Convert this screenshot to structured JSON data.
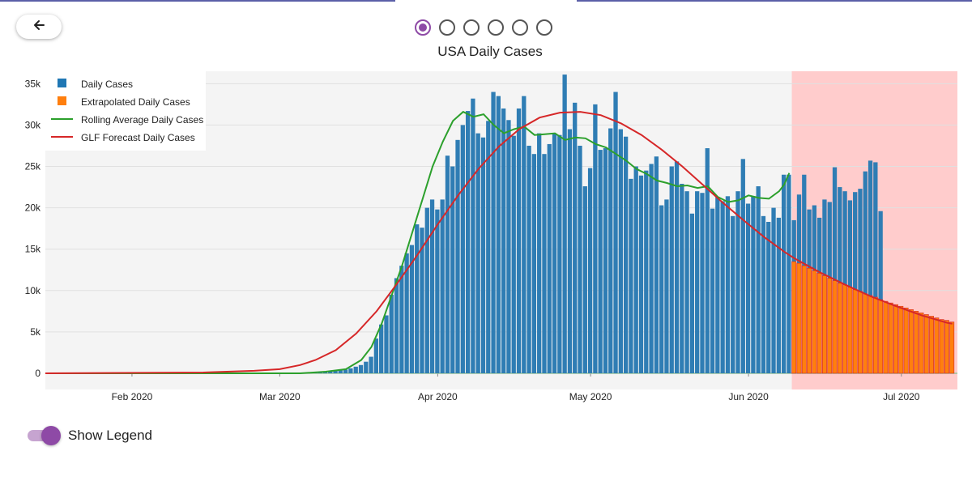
{
  "colors": {
    "accent": "#8e4aa6",
    "bars_actual": "#2f7db4",
    "bars_extrapolated": "#ff7f0e",
    "rolling": "#2ca02c",
    "forecast": "#d62728",
    "forecast_region": "#ffcccc",
    "plot_bg": "#f4f4f4"
  },
  "nav": {
    "back_icon": "arrow-left-icon",
    "page_count": 6,
    "active_page": 1
  },
  "toggle": {
    "label": "Show Legend",
    "on": true
  },
  "chart_data": {
    "type": "bar",
    "title": "USA Daily Cases",
    "xlabel": "",
    "ylabel": "",
    "x_range": [
      "2020-01-15",
      "2020-07-12"
    ],
    "ylim": [
      0,
      36500
    ],
    "yticks": [
      0,
      5000,
      10000,
      15000,
      20000,
      25000,
      30000,
      35000
    ],
    "ytick_labels": [
      "0",
      "5k",
      "10k",
      "15k",
      "20k",
      "25k",
      "30k",
      "35k"
    ],
    "xticks": [
      {
        "date": "2020-02-01",
        "label": "Feb 2020"
      },
      {
        "date": "2020-03-01",
        "label": "Mar 2020"
      },
      {
        "date": "2020-04-01",
        "label": "Apr 2020"
      },
      {
        "date": "2020-05-01",
        "label": "May 2020"
      },
      {
        "date": "2020-06-01",
        "label": "Jun 2020"
      },
      {
        "date": "2020-07-01",
        "label": "Jul 2020"
      }
    ],
    "grid": true,
    "legend_position": "top-left",
    "forecast_region_start": "2020-06-10",
    "series": [
      {
        "name": "Daily Cases",
        "kind": "bar",
        "start": "2020-01-15",
        "values": [
          0,
          0,
          0,
          0,
          0,
          0,
          0,
          0,
          0,
          0,
          0,
          0,
          0,
          0,
          0,
          0,
          0,
          0,
          0,
          0,
          0,
          0,
          0,
          0,
          0,
          0,
          0,
          0,
          0,
          0,
          0,
          0,
          0,
          0,
          0,
          0,
          0,
          0,
          0,
          0,
          0,
          0,
          0,
          0,
          0,
          0,
          0,
          0,
          0,
          0,
          0,
          20,
          40,
          60,
          100,
          150,
          200,
          300,
          350,
          450,
          600,
          800,
          1000,
          1400,
          2000,
          4200,
          5900,
          7000,
          9500,
          11500,
          13000,
          14500,
          15500,
          18000,
          17600,
          20000,
          21000,
          19800,
          21000,
          26300,
          25000,
          28200,
          30000,
          31700,
          33200,
          29000,
          28500,
          30500,
          34000,
          33500,
          32000,
          30600,
          28700,
          32000,
          33500,
          27500,
          26500,
          29000,
          26500,
          27700,
          29000,
          28800,
          36100,
          29500,
          32700,
          27500,
          22600,
          24800,
          32500,
          27000,
          27200,
          29600,
          34000,
          29500,
          28600,
          23500,
          25000,
          23900,
          24500,
          25300,
          26200,
          20300,
          21000,
          25000,
          25600,
          22900,
          22000,
          19300,
          22000,
          21800,
          27200,
          19900,
          21300,
          20800,
          21400,
          19000,
          22000,
          25900,
          20500,
          21400,
          22600,
          19000,
          18300,
          20000,
          18800,
          24000,
          24000,
          18500,
          21600,
          24000,
          19800,
          20300,
          18800,
          21000,
          20700,
          24900,
          22500,
          22000,
          20900,
          21900,
          22300,
          24400,
          25700,
          25500,
          19600
        ]
      },
      {
        "name": "Extrapolated Daily Cases",
        "kind": "bar",
        "start": "2020-06-10",
        "values": [
          13500,
          13300,
          13000,
          12700,
          12400,
          12100,
          11800,
          11500,
          11200,
          10900,
          10700,
          10400,
          10100,
          9900,
          9600,
          9400,
          9200,
          8900,
          8700,
          8500,
          8300,
          8100,
          7900,
          7700,
          7500,
          7300,
          7100,
          6900,
          6700,
          6500,
          6400,
          6200
        ]
      },
      {
        "name": "Rolling Average Daily Cases",
        "kind": "line",
        "points": [
          [
            "2020-01-15",
            0
          ],
          [
            "2020-02-15",
            0
          ],
          [
            "2020-03-05",
            0
          ],
          [
            "2020-03-10",
            200
          ],
          [
            "2020-03-14",
            500
          ],
          [
            "2020-03-17",
            1600
          ],
          [
            "2020-03-19",
            3200
          ],
          [
            "2020-03-21",
            6000
          ],
          [
            "2020-03-23",
            9500
          ],
          [
            "2020-03-25",
            13000
          ],
          [
            "2020-03-27",
            17000
          ],
          [
            "2020-03-29",
            21000
          ],
          [
            "2020-03-31",
            25000
          ],
          [
            "2020-04-02",
            28000
          ],
          [
            "2020-04-04",
            30500
          ],
          [
            "2020-04-06",
            31600
          ],
          [
            "2020-04-08",
            31000
          ],
          [
            "2020-04-10",
            31300
          ],
          [
            "2020-04-12",
            30000
          ],
          [
            "2020-04-14",
            29000
          ],
          [
            "2020-04-16",
            29500
          ],
          [
            "2020-04-18",
            29800
          ],
          [
            "2020-04-20",
            28800
          ],
          [
            "2020-04-22",
            28900
          ],
          [
            "2020-04-24",
            29000
          ],
          [
            "2020-04-26",
            28200
          ],
          [
            "2020-04-28",
            28500
          ],
          [
            "2020-04-30",
            28400
          ],
          [
            "2020-05-02",
            27700
          ],
          [
            "2020-05-04",
            27300
          ],
          [
            "2020-05-06",
            26500
          ],
          [
            "2020-05-08",
            25700
          ],
          [
            "2020-05-10",
            24700
          ],
          [
            "2020-05-12",
            24100
          ],
          [
            "2020-05-14",
            23300
          ],
          [
            "2020-05-16",
            23000
          ],
          [
            "2020-05-18",
            22600
          ],
          [
            "2020-05-20",
            22700
          ],
          [
            "2020-05-22",
            22400
          ],
          [
            "2020-05-24",
            22600
          ],
          [
            "2020-05-26",
            21300
          ],
          [
            "2020-05-28",
            20700
          ],
          [
            "2020-05-30",
            20900
          ],
          [
            "2020-06-01",
            21500
          ],
          [
            "2020-06-03",
            21200
          ],
          [
            "2020-06-05",
            21100
          ],
          [
            "2020-06-07",
            22000
          ],
          [
            "2020-06-08",
            22800
          ],
          [
            "2020-06-09",
            24200
          ]
        ]
      },
      {
        "name": "GLF Forecast Daily Cases",
        "kind": "line",
        "points": [
          [
            "2020-01-15",
            0
          ],
          [
            "2020-02-15",
            100
          ],
          [
            "2020-02-25",
            300
          ],
          [
            "2020-03-01",
            500
          ],
          [
            "2020-03-05",
            1000
          ],
          [
            "2020-03-08",
            1600
          ],
          [
            "2020-03-12",
            2800
          ],
          [
            "2020-03-16",
            4800
          ],
          [
            "2020-03-20",
            7500
          ],
          [
            "2020-03-24",
            10800
          ],
          [
            "2020-03-28",
            14300
          ],
          [
            "2020-04-01",
            18000
          ],
          [
            "2020-04-05",
            21500
          ],
          [
            "2020-04-09",
            24700
          ],
          [
            "2020-04-13",
            27400
          ],
          [
            "2020-04-17",
            29500
          ],
          [
            "2020-04-21",
            30900
          ],
          [
            "2020-04-25",
            31500
          ],
          [
            "2020-04-29",
            31600
          ],
          [
            "2020-05-03",
            31200
          ],
          [
            "2020-05-07",
            30200
          ],
          [
            "2020-05-11",
            28800
          ],
          [
            "2020-05-15",
            27000
          ],
          [
            "2020-05-19",
            25000
          ],
          [
            "2020-05-23",
            22800
          ],
          [
            "2020-05-27",
            20600
          ],
          [
            "2020-05-31",
            18500
          ],
          [
            "2020-06-04",
            16500
          ],
          [
            "2020-06-08",
            14700
          ],
          [
            "2020-06-10",
            13900
          ],
          [
            "2020-06-15",
            12200
          ],
          [
            "2020-06-20",
            10700
          ],
          [
            "2020-06-25",
            9300
          ],
          [
            "2020-06-30",
            8100
          ],
          [
            "2020-07-05",
            7000
          ],
          [
            "2020-07-10",
            6100
          ],
          [
            "2020-07-11",
            6000
          ]
        ]
      }
    ]
  }
}
